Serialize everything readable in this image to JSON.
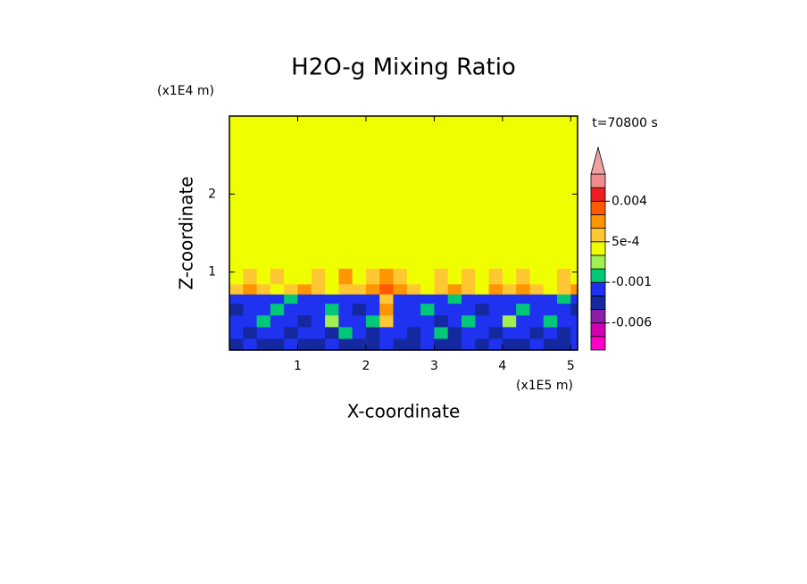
{
  "chart_data": {
    "type": "contour",
    "title": "H2O-g Mixing Ratio",
    "x_label": "X-coordinate",
    "y_label": "Z-coordinate",
    "x_unit": "(x1E5 m)",
    "y_unit": "(x1E4 m)",
    "annotation": "t=70800 s",
    "xlim": [
      0,
      5.1
    ],
    "ylim": [
      0,
      3
    ],
    "xticks": [
      1,
      2,
      3,
      4,
      5
    ],
    "yticks": [
      1,
      2
    ],
    "x_edges": [
      0,
      0.2,
      0.4,
      0.6,
      0.8,
      1.0,
      1.2,
      1.4,
      1.6,
      1.8,
      2.0,
      2.2,
      2.4,
      2.6,
      2.8,
      3.0,
      3.2,
      3.4,
      3.6,
      3.8,
      4.0,
      4.2,
      4.4,
      4.6,
      4.8,
      5.0,
      5.1
    ],
    "y_edges": [
      0,
      0.15,
      0.3,
      0.45,
      0.6,
      0.72,
      0.85,
      1.05,
      3
    ],
    "values": [
      [
        -0.003,
        -0.0015,
        -0.003,
        -0.003,
        -0.0015,
        -0.003,
        -0.003,
        -0.0015,
        -0.003,
        -0.003,
        -0.003,
        -0.0015,
        -0.003,
        -0.003,
        -0.0015,
        -0.003,
        -0.003,
        -0.0015,
        -0.003,
        -0.0015,
        -0.003,
        -0.003,
        -0.0015,
        -0.003,
        -0.003,
        -0.0015
      ],
      [
        -0.0015,
        -0.003,
        -0.0015,
        -0.0015,
        -0.003,
        -0.0015,
        -0.0015,
        -0.003,
        -0.0007,
        -0.0015,
        -0.003,
        -0.0015,
        -0.0015,
        -0.003,
        -0.0015,
        -0.0007,
        -0.003,
        -0.0015,
        -0.0015,
        -0.003,
        -0.0015,
        -0.0015,
        -0.003,
        -0.0015,
        -0.003,
        -0.0015
      ],
      [
        -0.0015,
        -0.0015,
        -0.0007,
        -0.0015,
        -0.0015,
        -0.003,
        -0.0015,
        -0.0003,
        -0.0015,
        -0.0015,
        -0.0007,
        0.0007,
        -0.0015,
        -0.0015,
        -0.0015,
        -0.003,
        -0.0015,
        -0.0007,
        -0.0015,
        -0.0015,
        -0.0003,
        -0.0015,
        -0.0015,
        -0.0007,
        -0.0015,
        -0.0015
      ],
      [
        -0.003,
        -0.0015,
        -0.0015,
        -0.0007,
        -0.0015,
        -0.0015,
        -0.0015,
        -0.0007,
        -0.0015,
        -0.003,
        -0.0015,
        0.0015,
        -0.0015,
        -0.0015,
        -0.0007,
        -0.0015,
        -0.0015,
        -0.0015,
        -0.003,
        -0.0015,
        -0.0015,
        -0.0007,
        -0.0015,
        -0.0015,
        -0.0015,
        -0.003
      ],
      [
        -0.0015,
        -0.0015,
        -0.0015,
        -0.0015,
        -0.0007,
        -0.0015,
        -0.0015,
        -0.0015,
        -0.0015,
        -0.0015,
        -0.0015,
        0.0007,
        -0.0015,
        -0.0015,
        -0.0015,
        -0.0015,
        -0.0007,
        -0.0015,
        -0.0015,
        -0.0015,
        -0.0015,
        -0.0015,
        -0.0015,
        -0.0015,
        -0.0007,
        -0.0015
      ],
      [
        0.0007,
        0.0015,
        0.0007,
        0.0002,
        0.0007,
        0.0015,
        0.0007,
        0.0002,
        0.0007,
        0.0007,
        0.0015,
        0.003,
        0.0015,
        0.0007,
        0.0002,
        0.0007,
        0.0015,
        0.0007,
        0.0002,
        0.0015,
        0.0007,
        0.0015,
        0.0007,
        0.0002,
        0.0007,
        0.0015
      ],
      [
        0.0002,
        0.0007,
        0.0002,
        0.0007,
        0.0002,
        0.0002,
        0.0007,
        0.0002,
        0.0015,
        0.0002,
        0.0007,
        0.0015,
        0.0007,
        0.0002,
        0.0002,
        0.0007,
        0.0002,
        0.0007,
        0.0002,
        0.0007,
        0.0002,
        0.0007,
        0.0002,
        0.0002,
        0.0007,
        0.0002
      ],
      [
        0.0002,
        0.0002,
        0.0002,
        0.0002,
        0.0002,
        0.0002,
        0.0002,
        0.0002,
        0.0002,
        0.0002,
        0.0002,
        0.0002,
        0.0002,
        0.0002,
        0.0002,
        0.0002,
        0.0002,
        0.0002,
        0.0002,
        0.0002,
        0.0002,
        0.0002,
        0.0002,
        0.0002,
        0.0002,
        0.0002
      ]
    ],
    "colorbar": {
      "levels": [
        -0.01,
        -0.008,
        -0.006,
        -0.004,
        -0.002,
        -0.001,
        -0.0005,
        0,
        0.0005,
        0.001,
        0.002,
        0.004,
        0.006,
        0.008
      ],
      "colors": [
        "#ff00c8",
        "#d200b4",
        "#8c1eaa",
        "#1428a0",
        "#1e32f0",
        "#00c878",
        "#a0f050",
        "#f0ff00",
        "#ffc832",
        "#ff9600",
        "#ff5a00",
        "#f01e1e",
        "#f08c8c"
      ],
      "extend_color": "#f0a0a0",
      "ticks": [
        0.004,
        {
          "value": 0.0005,
          "label": "5e-4"
        },
        -0.001,
        -0.006
      ]
    }
  }
}
